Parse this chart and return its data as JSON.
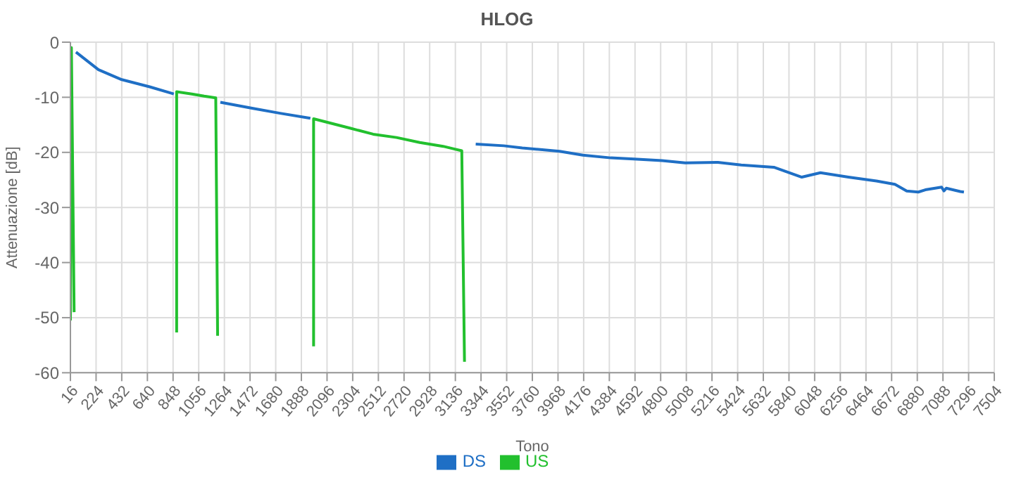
{
  "chart_data": {
    "type": "line",
    "title": "HLOG",
    "xlabel": "Tono",
    "ylabel": "Attenuazione [dB]",
    "xlim": [
      16,
      7504
    ],
    "xticks": [
      16,
      224,
      432,
      640,
      848,
      1056,
      1264,
      1472,
      1680,
      1888,
      2096,
      2304,
      2512,
      2720,
      2928,
      3136,
      3344,
      3552,
      3760,
      3968,
      4176,
      4384,
      4592,
      4800,
      5008,
      5216,
      5424,
      5632,
      5840,
      6048,
      6256,
      6464,
      6672,
      6880,
      7088,
      7296,
      7504
    ],
    "ylim": [
      -60,
      0
    ],
    "yticks": [
      -60,
      -50,
      -40,
      -30,
      -20,
      -10,
      0
    ],
    "grid": true,
    "legend": "bottom",
    "marker": "none",
    "line_style": "solid",
    "series": [
      {
        "name": "DS",
        "color": "#1f6fc5",
        "x": [
          61,
          243,
          432,
          658,
          854,
          1040,
          1231,
          1489,
          1715,
          1961,
          2600,
          3301,
          3528,
          3678,
          3981,
          4170,
          4396,
          4585,
          4811,
          4999,
          5264,
          5453,
          5717,
          5944,
          6095,
          6322,
          6549,
          6699,
          6794,
          6888,
          6945,
          7077,
          7096,
          7115,
          7228,
          7258
        ],
        "values": [
          -1.8,
          -5,
          -6.8,
          -8.1,
          -9.4,
          null,
          -10.9,
          -12,
          -12.9,
          -13.8,
          null,
          -18.5,
          -18.8,
          -19.2,
          -19.8,
          -20.5,
          -21,
          -21.2,
          -21.5,
          -21.9,
          -21.8,
          -22.3,
          -22.7,
          -24.5,
          -23.7,
          -24.5,
          -25.2,
          -25.8,
          -27,
          -27.2,
          -26.8,
          -26.3,
          -27,
          -26.5,
          -27.1,
          -27.2
        ]
      },
      {
        "name": "US",
        "color": "#22c02e",
        "x": [
          16,
          24,
          46,
          460,
          877,
          877,
          1000,
          1100,
          1194,
          1209,
          1600,
          1987,
          1987,
          2281,
          2470,
          2659,
          2848,
          3037,
          3131,
          3188,
          3210
        ],
        "values": [
          -50.5,
          -1,
          -49,
          null,
          -52.7,
          -9,
          -9.4,
          -9.8,
          -10.1,
          -53.3,
          null,
          -55.2,
          -13.9,
          -15.6,
          -16.7,
          -17.3,
          -18.2,
          -18.9,
          -19.4,
          -19.7,
          -58
        ]
      }
    ]
  }
}
